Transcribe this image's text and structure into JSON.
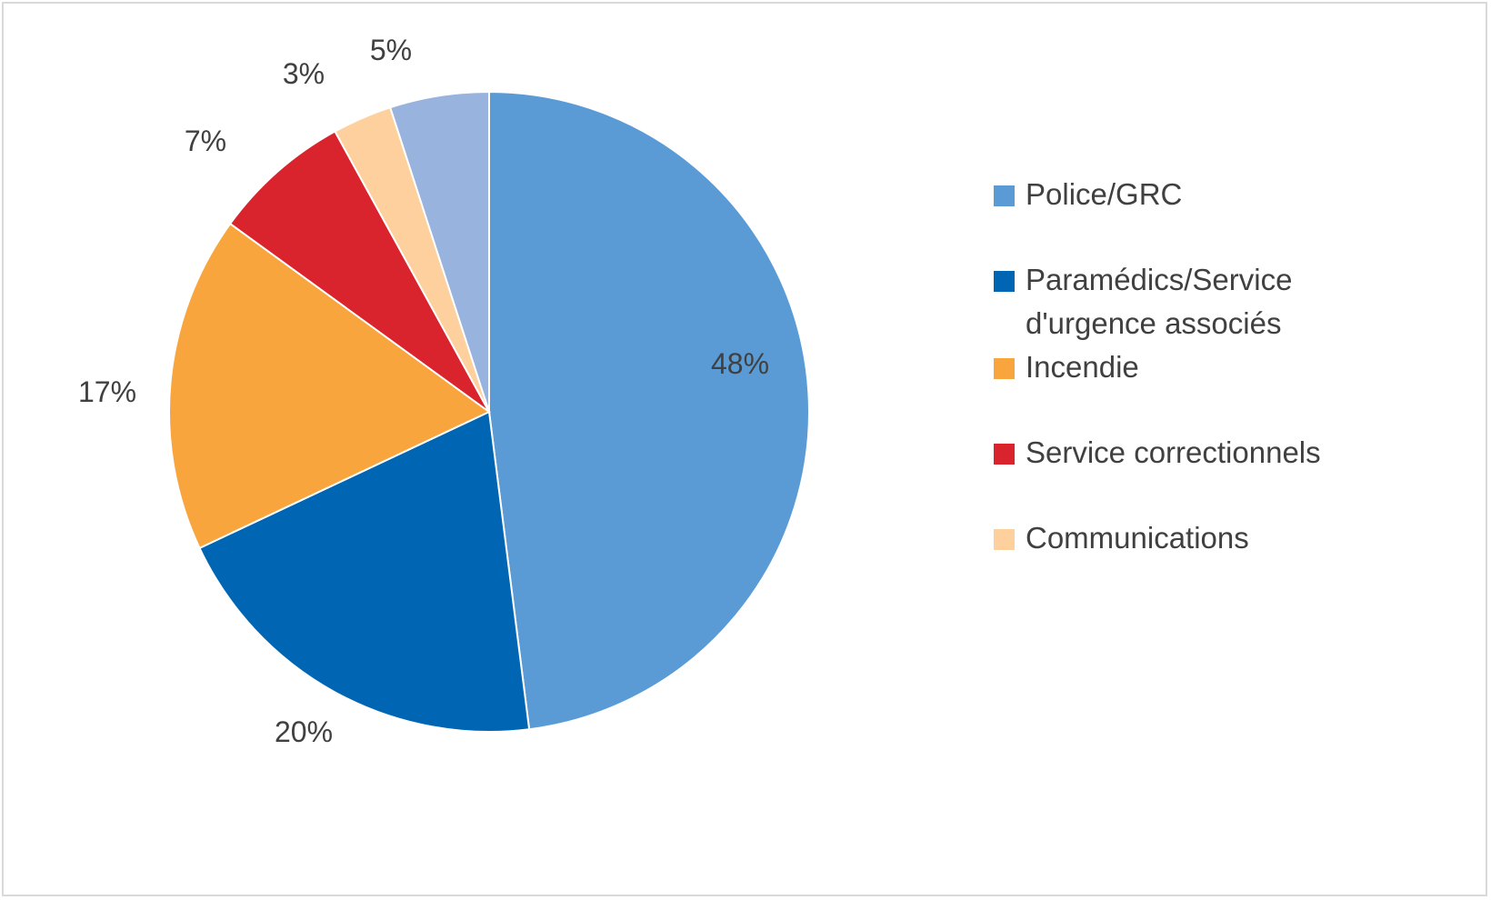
{
  "chart_data": {
    "type": "pie",
    "categories": [
      "Police/GRC",
      "Paramédics/Service d'urgence associés",
      "Incendie",
      "Service correctionnels",
      "Communications",
      ""
    ],
    "values": [
      48,
      20,
      17,
      7,
      3,
      5
    ],
    "data_labels": [
      "48%",
      "20%",
      "17%",
      "7%",
      "3%",
      "5%"
    ],
    "colors": [
      "#5b9bd5",
      "#0066b3",
      "#f9a53e",
      "#d9232d",
      "#fdd09e",
      "#98b3de"
    ],
    "start_angle": "12 o'clock",
    "direction": "clockwise",
    "legend": {
      "position": "right",
      "entries": [
        {
          "label": "Police/GRC",
          "color": "#5b9bd5"
        },
        {
          "label": "Paramédics/Service d'urgence associés",
          "color": "#0066b3"
        },
        {
          "label": "Incendie",
          "color": "#f9a53e"
        },
        {
          "label": "Service correctionnels",
          "color": "#d9232d"
        },
        {
          "label": "Communications",
          "color": "#fdd09e"
        }
      ]
    }
  }
}
